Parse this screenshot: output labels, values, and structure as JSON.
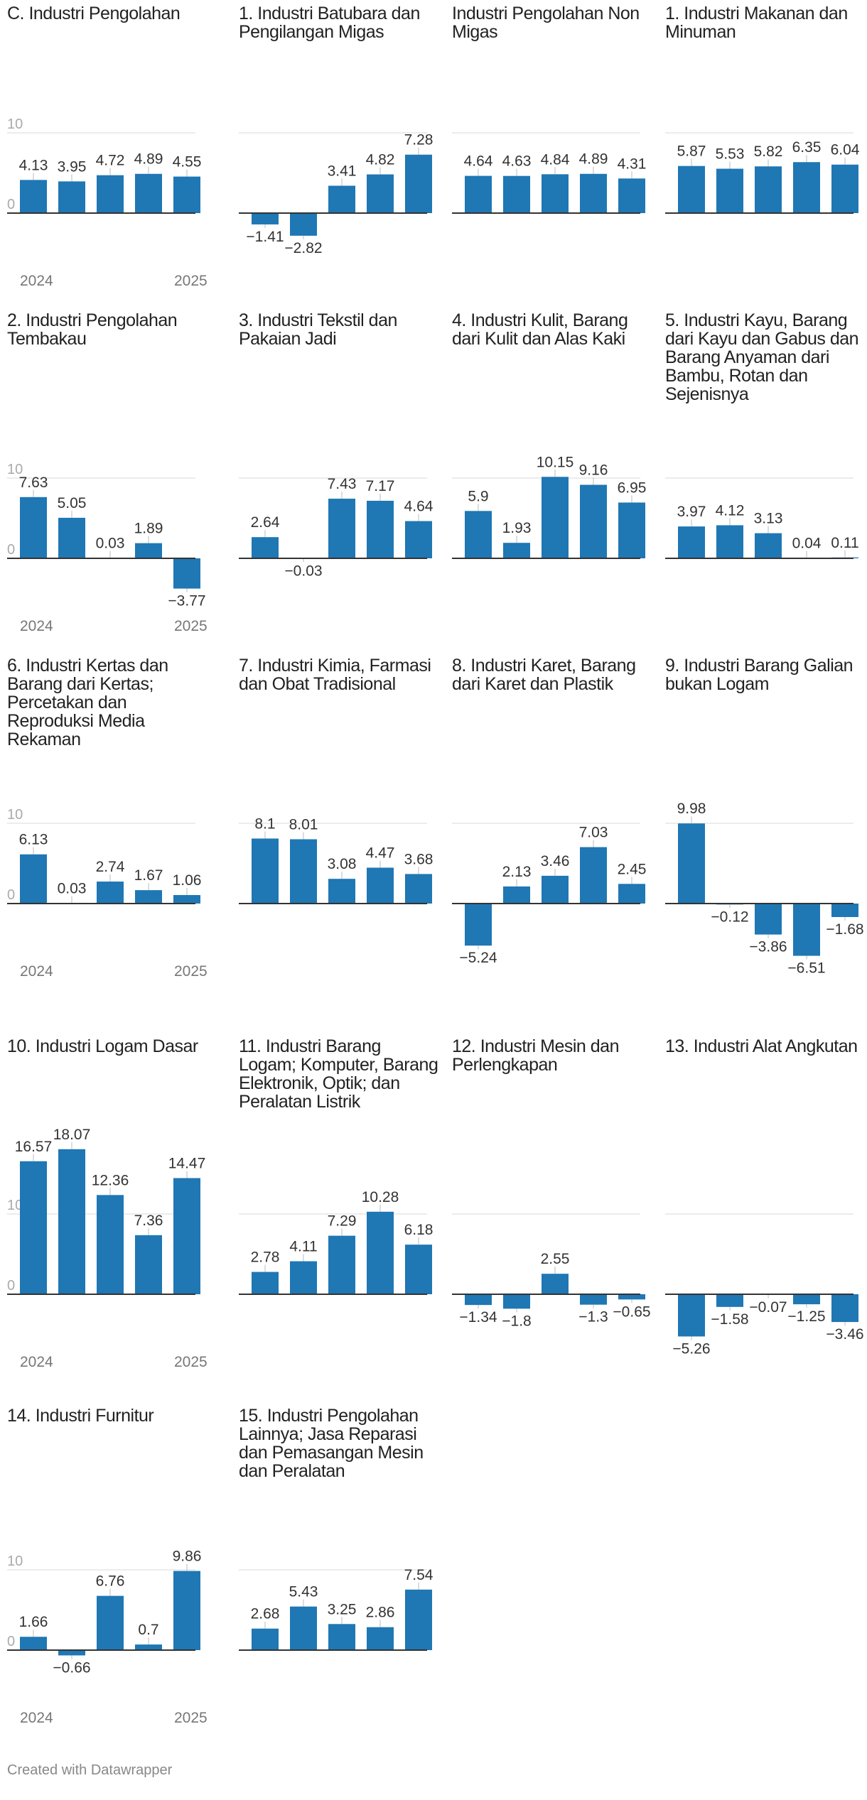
{
  "colors": {
    "bar": "#1f77b4",
    "axis": "#333333",
    "grid": "#e6e6e6",
    "tick_text": "#aaaaaa",
    "label_text": "#333333"
  },
  "x_axis_labels": {
    "start": "2024",
    "end": "2025"
  },
  "y_axis_labels": {
    "zero": "0",
    "ten": "10"
  },
  "footer": "Created with Datawrapper",
  "chart_data": [
    {
      "type": "bar",
      "title": "C. Industri Pengolahan",
      "values": [
        4.13,
        3.95,
        4.72,
        4.89,
        4.55
      ],
      "value_labels": [
        "4.13",
        "3.95",
        "4.72",
        "4.89",
        "4.55"
      ],
      "ylim": [
        0,
        10
      ]
    },
    {
      "type": "bar",
      "title": "1. Industri Batubara dan Pengilangan Migas",
      "values": [
        -1.41,
        -2.82,
        3.41,
        4.82,
        7.28
      ],
      "value_labels": [
        "−1.41",
        "−2.82",
        "3.41",
        "4.82",
        "7.28"
      ],
      "ylim": [
        0,
        10
      ]
    },
    {
      "type": "bar",
      "title": "Industri Pengolahan Non Migas",
      "values": [
        4.64,
        4.63,
        4.84,
        4.89,
        4.31
      ],
      "value_labels": [
        "4.64",
        "4.63",
        "4.84",
        "4.89",
        "4.31"
      ],
      "ylim": [
        0,
        10
      ]
    },
    {
      "type": "bar",
      "title": "1. Industri Makanan dan Minuman",
      "values": [
        5.87,
        5.53,
        5.82,
        6.35,
        6.04
      ],
      "value_labels": [
        "5.87",
        "5.53",
        "5.82",
        "6.35",
        "6.04"
      ],
      "ylim": [
        0,
        10
      ]
    },
    {
      "type": "bar",
      "title": "2. Industri Pengolahan Tembakau",
      "values": [
        7.63,
        5.05,
        0.03,
        1.89,
        -3.77
      ],
      "value_labels": [
        "7.63",
        "5.05",
        "0.03",
        "1.89",
        "−3.77"
      ],
      "ylim": [
        0,
        10
      ]
    },
    {
      "type": "bar",
      "title": "3. Industri Tekstil dan Pakaian Jadi",
      "values": [
        2.64,
        -0.03,
        7.43,
        7.17,
        4.64
      ],
      "value_labels": [
        "2.64",
        "−0.03",
        "7.43",
        "7.17",
        "4.64"
      ],
      "ylim": [
        0,
        10
      ]
    },
    {
      "type": "bar",
      "title": "4. Industri Kulit, Barang dari Kulit dan Alas Kaki",
      "values": [
        5.9,
        1.93,
        10.15,
        9.16,
        6.95
      ],
      "value_labels": [
        "5.9",
        "1.93",
        "10.15",
        "9.16",
        "6.95"
      ],
      "ylim": [
        0,
        10
      ]
    },
    {
      "type": "bar",
      "title": "5. Industri Kayu, Barang dari Kayu dan Gabus dan Barang Anyaman dari Bambu, Rotan dan Sejenisnya",
      "values": [
        3.97,
        4.12,
        3.13,
        0.04,
        0.11
      ],
      "value_labels": [
        "3.97",
        "4.12",
        "3.13",
        "0.04",
        "0.11"
      ],
      "ylim": [
        0,
        10
      ]
    },
    {
      "type": "bar",
      "title": "6. Industri Kertas dan Barang dari Kertas; Percetakan dan Reproduksi Media Rekaman",
      "values": [
        6.13,
        0.03,
        2.74,
        1.67,
        1.06
      ],
      "value_labels": [
        "6.13",
        "0.03",
        "2.74",
        "1.67",
        "1.06"
      ],
      "ylim": [
        0,
        10
      ]
    },
    {
      "type": "bar",
      "title": "7. Industri Kimia, Farmasi dan Obat Tradisional",
      "values": [
        8.1,
        8.01,
        3.08,
        4.47,
        3.68
      ],
      "value_labels": [
        "8.1",
        "8.01",
        "3.08",
        "4.47",
        "3.68"
      ],
      "ylim": [
        0,
        10
      ]
    },
    {
      "type": "bar",
      "title": "8. Industri Karet, Barang dari Karet dan Plastik",
      "values": [
        -5.24,
        2.13,
        3.46,
        7.03,
        2.45
      ],
      "value_labels": [
        "−5.24",
        "2.13",
        "3.46",
        "7.03",
        "2.45"
      ],
      "ylim": [
        0,
        10
      ]
    },
    {
      "type": "bar",
      "title": "9. Industri Barang Galian bukan Logam",
      "values": [
        9.98,
        -0.12,
        -3.86,
        -6.51,
        -1.68
      ],
      "value_labels": [
        "9.98",
        "−0.12",
        "−3.86",
        "−6.51",
        "−1.68"
      ],
      "ylim": [
        0,
        10
      ]
    },
    {
      "type": "bar",
      "title": "10. Industri Logam Dasar",
      "values": [
        16.57,
        18.07,
        12.36,
        7.36,
        14.47
      ],
      "value_labels": [
        "16.57",
        "18.07",
        "12.36",
        "7.36",
        "14.47"
      ],
      "ylim": [
        0,
        10
      ]
    },
    {
      "type": "bar",
      "title": "11. Industri Barang Logam; Komputer, Barang Elektronik, Optik; dan Peralatan Listrik",
      "values": [
        2.78,
        4.11,
        7.29,
        10.28,
        6.18
      ],
      "value_labels": [
        "2.78",
        "4.11",
        "7.29",
        "10.28",
        "6.18"
      ],
      "ylim": [
        0,
        10
      ]
    },
    {
      "type": "bar",
      "title": "12. Industri Mesin dan Perlengkapan",
      "values": [
        -1.34,
        -1.8,
        2.55,
        -1.3,
        -0.65
      ],
      "value_labels": [
        "−1.34",
        "−1.8",
        "2.55",
        "−1.3",
        "−0.65"
      ],
      "ylim": [
        0,
        10
      ]
    },
    {
      "type": "bar",
      "title": "13. Industri Alat Angkutan",
      "values": [
        -5.26,
        -1.58,
        -0.07,
        -1.25,
        -3.46
      ],
      "value_labels": [
        "−5.26",
        "−1.58",
        "−0.07",
        "−1.25",
        "−3.46"
      ],
      "ylim": [
        0,
        10
      ]
    },
    {
      "type": "bar",
      "title": "14. Industri Furnitur",
      "values": [
        1.66,
        -0.66,
        6.76,
        0.7,
        9.86
      ],
      "value_labels": [
        "1.66",
        "−0.66",
        "6.76",
        "0.7",
        "9.86"
      ],
      "ylim": [
        0,
        10
      ]
    },
    {
      "type": "bar",
      "title": "15. Industri Pengolahan Lainnya; Jasa Reparasi dan Pemasangan Mesin dan Peralatan",
      "values": [
        2.68,
        5.43,
        3.25,
        2.86,
        7.54
      ],
      "value_labels": [
        "2.68",
        "5.43",
        "3.25",
        "2.86",
        "7.54"
      ],
      "ylim": [
        0,
        10
      ]
    }
  ]
}
